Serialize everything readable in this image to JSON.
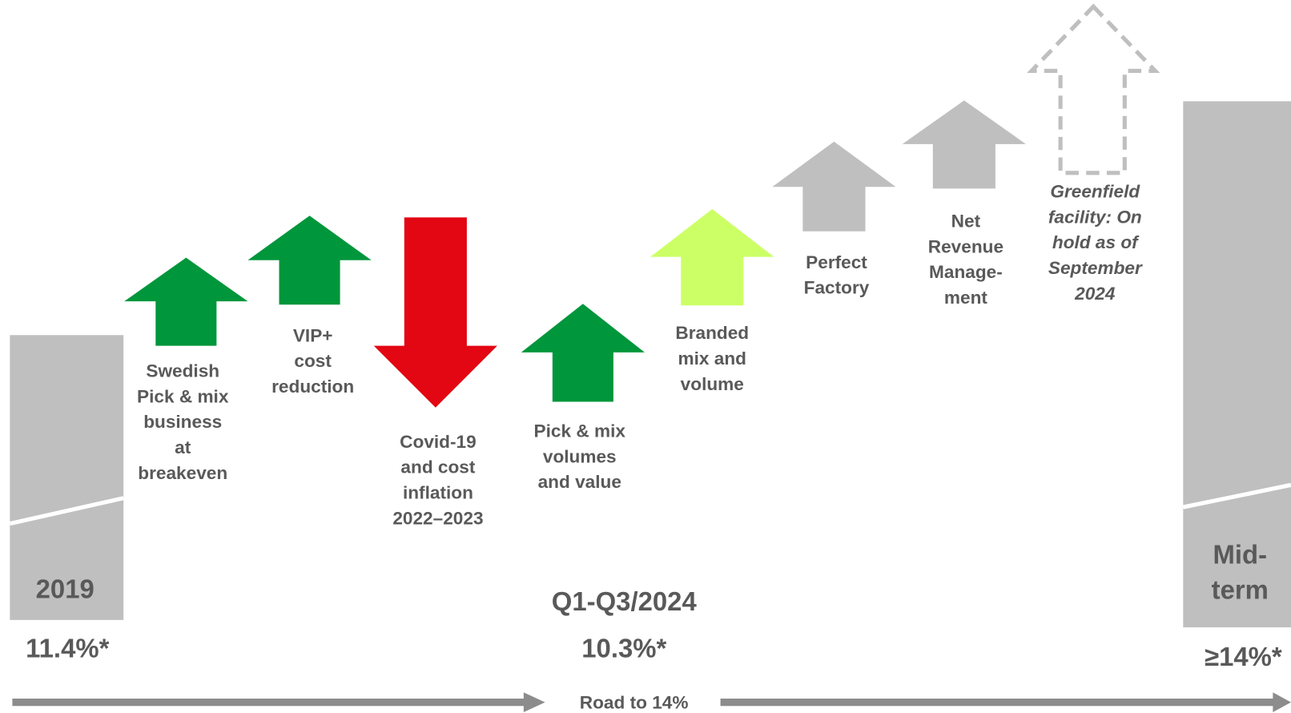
{
  "start": {
    "label": "2019",
    "value": "11.4%*"
  },
  "current": {
    "label": "Q1-Q3/2024",
    "value": "10.3%*"
  },
  "end": {
    "label": [
      "Mid-",
      "term"
    ],
    "value": "≥14%*"
  },
  "factors": [
    {
      "lines": [
        "Swedish",
        "Pick & mix",
        "business",
        "at",
        "breakeven"
      ]
    },
    {
      "lines": [
        "VIP+",
        "cost",
        "reduction"
      ]
    },
    {
      "lines": [
        "Covid-19",
        "and cost",
        "inflation",
        "2022–2023"
      ]
    },
    {
      "lines": [
        "Pick & mix",
        "volumes",
        "and value"
      ]
    },
    {
      "lines": [
        "Branded",
        "mix and",
        "volume"
      ]
    },
    {
      "lines": [
        "Perfect",
        "Factory"
      ]
    },
    {
      "lines": [
        "Net",
        "Revenue",
        "Manage-",
        "ment"
      ]
    },
    {
      "lines": [
        "Greenfield",
        "facility: On",
        "hold as of",
        "September",
        "2024"
      ]
    }
  ],
  "footer": "Road to 14%"
}
